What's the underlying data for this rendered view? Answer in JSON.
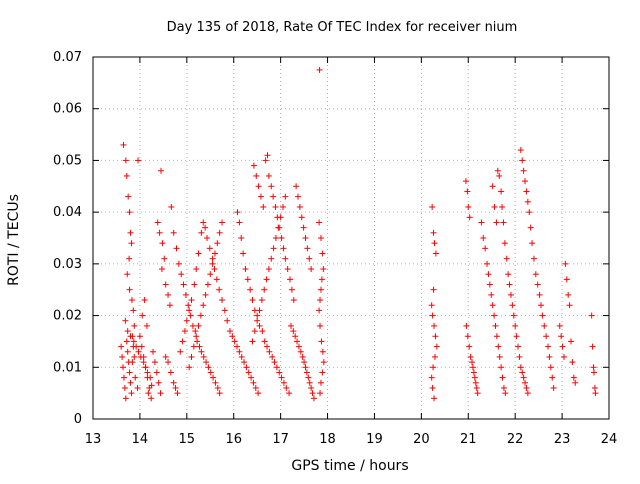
{
  "chart_data": {
    "type": "scatter",
    "title": "Day 135 of 2018, Rate Of TEC Index for receiver nium",
    "xlabel": "GPS time / hours",
    "ylabel": "ROTI / TECUs",
    "xlim": [
      13,
      24
    ],
    "ylim": [
      0,
      0.07
    ],
    "xticks": [
      13,
      14,
      15,
      16,
      17,
      18,
      19,
      20,
      21,
      22,
      23,
      24
    ],
    "yticks": [
      0,
      0.01,
      0.02,
      0.03,
      0.04,
      0.05,
      0.06,
      0.07
    ],
    "ytick_labels": [
      "0",
      "0.01",
      "0.02",
      "0.03",
      "0.04",
      "0.05",
      "0.06",
      "0.07"
    ],
    "grid": true,
    "marker": "+",
    "series_color": "#ff0000",
    "points": [
      [
        13.65,
        0.053
      ],
      [
        13.7,
        0.05
      ],
      [
        13.72,
        0.047
      ],
      [
        13.75,
        0.043
      ],
      [
        13.78,
        0.04
      ],
      [
        13.8,
        0.036
      ],
      [
        13.82,
        0.034
      ],
      [
        13.77,
        0.031
      ],
      [
        13.73,
        0.028
      ],
      [
        13.78,
        0.025
      ],
      [
        13.83,
        0.023
      ],
      [
        13.86,
        0.021
      ],
      [
        13.69,
        0.019
      ],
      [
        13.74,
        0.017
      ],
      [
        13.8,
        0.016
      ],
      [
        13.87,
        0.015
      ],
      [
        13.92,
        0.014
      ],
      [
        13.97,
        0.013
      ],
      [
        14.02,
        0.012
      ],
      [
        14.08,
        0.011
      ],
      [
        14.12,
        0.01
      ],
      [
        14.16,
        0.009
      ],
      [
        14.22,
        0.008
      ],
      [
        14.25,
        0.0065
      ],
      [
        14.18,
        0.005
      ],
      [
        13.95,
        0.006
      ],
      [
        13.9,
        0.008
      ],
      [
        13.84,
        0.011
      ],
      [
        13.88,
        0.018
      ],
      [
        14.05,
        0.02
      ],
      [
        14.1,
        0.023
      ],
      [
        14.15,
        0.018
      ],
      [
        13.96,
        0.05
      ],
      [
        14.45,
        0.048
      ],
      [
        14.38,
        0.038
      ],
      [
        14.42,
        0.036
      ],
      [
        14.48,
        0.034
      ],
      [
        14.52,
        0.031
      ],
      [
        14.47,
        0.029
      ],
      [
        14.55,
        0.026
      ],
      [
        14.6,
        0.024
      ],
      [
        14.64,
        0.022
      ],
      [
        14.67,
        0.041
      ],
      [
        14.72,
        0.036
      ],
      [
        14.78,
        0.033
      ],
      [
        14.83,
        0.03
      ],
      [
        14.88,
        0.028
      ],
      [
        14.93,
        0.026
      ],
      [
        14.98,
        0.024
      ],
      [
        15.03,
        0.022
      ],
      [
        15.08,
        0.02
      ],
      [
        15.13,
        0.018
      ],
      [
        15.18,
        0.017
      ],
      [
        15.22,
        0.015
      ],
      [
        15.27,
        0.014
      ],
      [
        15.31,
        0.013
      ],
      [
        15.36,
        0.012
      ],
      [
        15.41,
        0.011
      ],
      [
        15.46,
        0.01
      ],
      [
        15.51,
        0.009
      ],
      [
        15.56,
        0.008
      ],
      [
        15.61,
        0.007
      ],
      [
        15.66,
        0.006
      ],
      [
        15.7,
        0.005
      ],
      [
        14.55,
        0.012
      ],
      [
        14.6,
        0.011
      ],
      [
        14.66,
        0.009
      ],
      [
        14.72,
        0.007
      ],
      [
        14.76,
        0.006
      ],
      [
        14.8,
        0.005
      ],
      [
        14.86,
        0.013
      ],
      [
        14.91,
        0.015
      ],
      [
        14.96,
        0.017
      ],
      [
        15.0,
        0.019
      ],
      [
        15.05,
        0.021
      ],
      [
        15.1,
        0.023
      ],
      [
        15.16,
        0.026
      ],
      [
        15.2,
        0.029
      ],
      [
        15.25,
        0.032
      ],
      [
        15.31,
        0.036
      ],
      [
        15.35,
        0.038
      ],
      [
        15.39,
        0.037
      ],
      [
        15.43,
        0.035
      ],
      [
        15.49,
        0.033
      ],
      [
        15.55,
        0.031
      ],
      [
        15.59,
        0.029
      ],
      [
        15.64,
        0.027
      ],
      [
        15.69,
        0.025
      ],
      [
        15.75,
        0.023
      ],
      [
        15.81,
        0.021
      ],
      [
        15.86,
        0.019
      ],
      [
        15.92,
        0.017
      ],
      [
        15.97,
        0.016
      ],
      [
        16.02,
        0.015
      ],
      [
        16.07,
        0.014
      ],
      [
        16.12,
        0.013
      ],
      [
        16.17,
        0.012
      ],
      [
        16.22,
        0.011
      ],
      [
        16.27,
        0.01
      ],
      [
        16.32,
        0.009
      ],
      [
        16.37,
        0.008
      ],
      [
        16.42,
        0.007
      ],
      [
        16.47,
        0.006
      ],
      [
        16.52,
        0.005
      ],
      [
        16.08,
        0.04
      ],
      [
        16.12,
        0.038
      ],
      [
        16.16,
        0.035
      ],
      [
        16.2,
        0.032
      ],
      [
        16.25,
        0.029
      ],
      [
        16.3,
        0.027
      ],
      [
        16.35,
        0.025
      ],
      [
        16.4,
        0.023
      ],
      [
        16.45,
        0.021
      ],
      [
        16.5,
        0.02
      ],
      [
        16.55,
        0.018
      ],
      [
        16.61,
        0.017
      ],
      [
        16.66,
        0.015
      ],
      [
        16.71,
        0.014
      ],
      [
        16.76,
        0.013
      ],
      [
        16.82,
        0.012
      ],
      [
        16.87,
        0.011
      ],
      [
        16.92,
        0.01
      ],
      [
        16.97,
        0.009
      ],
      [
        17.02,
        0.008
      ],
      [
        17.07,
        0.007
      ],
      [
        17.12,
        0.006
      ],
      [
        17.18,
        0.005
      ],
      [
        16.43,
        0.049
      ],
      [
        16.48,
        0.047
      ],
      [
        16.53,
        0.045
      ],
      [
        16.58,
        0.043
      ],
      [
        16.63,
        0.041
      ],
      [
        16.68,
        0.05
      ],
      [
        16.72,
        0.051
      ],
      [
        16.75,
        0.047
      ],
      [
        16.8,
        0.045
      ],
      [
        16.84,
        0.043
      ],
      [
        16.89,
        0.041
      ],
      [
        16.93,
        0.039
      ],
      [
        16.97,
        0.037
      ],
      [
        17.02,
        0.035
      ],
      [
        17.06,
        0.033
      ],
      [
        17.1,
        0.031
      ],
      [
        17.15,
        0.029
      ],
      [
        17.2,
        0.027
      ],
      [
        17.24,
        0.025
      ],
      [
        17.28,
        0.023
      ],
      [
        17.33,
        0.045
      ],
      [
        17.37,
        0.043
      ],
      [
        17.41,
        0.041
      ],
      [
        17.45,
        0.039
      ],
      [
        17.49,
        0.037
      ],
      [
        17.53,
        0.035
      ],
      [
        17.57,
        0.033
      ],
      [
        17.61,
        0.031
      ],
      [
        17.65,
        0.029
      ],
      [
        17.22,
        0.018
      ],
      [
        17.27,
        0.017
      ],
      [
        17.31,
        0.016
      ],
      [
        17.35,
        0.015
      ],
      [
        17.39,
        0.014
      ],
      [
        17.43,
        0.013
      ],
      [
        17.47,
        0.012
      ],
      [
        17.5,
        0.011
      ],
      [
        17.53,
        0.01
      ],
      [
        17.56,
        0.009
      ],
      [
        17.59,
        0.008
      ],
      [
        17.62,
        0.007
      ],
      [
        17.65,
        0.006
      ],
      [
        17.68,
        0.005
      ],
      [
        17.71,
        0.004
      ],
      [
        17.83,
        0.0675
      ],
      [
        17.82,
        0.038
      ],
      [
        17.86,
        0.035
      ],
      [
        17.89,
        0.032
      ],
      [
        17.91,
        0.029
      ],
      [
        17.88,
        0.027
      ],
      [
        17.86,
        0.025
      ],
      [
        17.84,
        0.023
      ],
      [
        17.82,
        0.021
      ],
      [
        17.84,
        0.018
      ],
      [
        17.87,
        0.015
      ],
      [
        17.9,
        0.013
      ],
      [
        17.92,
        0.011
      ],
      [
        17.89,
        0.009
      ],
      [
        17.86,
        0.007
      ],
      [
        17.84,
        0.005
      ],
      [
        20.23,
        0.041
      ],
      [
        20.26,
        0.036
      ],
      [
        20.28,
        0.034
      ],
      [
        20.31,
        0.032
      ],
      [
        20.26,
        0.025
      ],
      [
        20.22,
        0.022
      ],
      [
        20.24,
        0.02
      ],
      [
        20.27,
        0.018
      ],
      [
        20.3,
        0.016
      ],
      [
        20.33,
        0.014
      ],
      [
        20.29,
        0.012
      ],
      [
        20.25,
        0.01
      ],
      [
        20.22,
        0.008
      ],
      [
        20.24,
        0.006
      ],
      [
        20.27,
        0.004
      ],
      [
        20.95,
        0.046
      ],
      [
        20.98,
        0.044
      ],
      [
        21.0,
        0.041
      ],
      [
        21.03,
        0.039
      ],
      [
        20.96,
        0.018
      ],
      [
        20.99,
        0.016
      ],
      [
        21.02,
        0.014
      ],
      [
        21.05,
        0.012
      ],
      [
        21.08,
        0.011
      ],
      [
        21.1,
        0.01
      ],
      [
        21.12,
        0.009
      ],
      [
        21.14,
        0.008
      ],
      [
        21.16,
        0.007
      ],
      [
        21.18,
        0.006
      ],
      [
        21.2,
        0.005
      ],
      [
        21.28,
        0.038
      ],
      [
        21.32,
        0.035
      ],
      [
        21.36,
        0.033
      ],
      [
        21.4,
        0.03
      ],
      [
        21.43,
        0.028
      ],
      [
        21.46,
        0.026
      ],
      [
        21.49,
        0.024
      ],
      [
        21.52,
        0.022
      ],
      [
        21.55,
        0.02
      ],
      [
        21.58,
        0.018
      ],
      [
        21.61,
        0.016
      ],
      [
        21.64,
        0.014
      ],
      [
        21.67,
        0.012
      ],
      [
        21.7,
        0.01
      ],
      [
        21.73,
        0.008
      ],
      [
        21.76,
        0.006
      ],
      [
        21.79,
        0.005
      ],
      [
        21.52,
        0.045
      ],
      [
        21.56,
        0.041
      ],
      [
        21.6,
        0.038
      ],
      [
        21.63,
        0.048
      ],
      [
        21.66,
        0.047
      ],
      [
        21.7,
        0.044
      ],
      [
        21.72,
        0.041
      ],
      [
        21.75,
        0.038
      ],
      [
        21.78,
        0.034
      ],
      [
        21.82,
        0.031
      ],
      [
        21.85,
        0.028
      ],
      [
        21.88,
        0.026
      ],
      [
        21.91,
        0.024
      ],
      [
        21.94,
        0.022
      ],
      [
        21.97,
        0.02
      ],
      [
        22.0,
        0.018
      ],
      [
        22.03,
        0.016
      ],
      [
        22.06,
        0.014
      ],
      [
        22.09,
        0.012
      ],
      [
        22.12,
        0.01
      ],
      [
        22.15,
        0.009
      ],
      [
        22.18,
        0.008
      ],
      [
        22.21,
        0.007
      ],
      [
        22.24,
        0.006
      ],
      [
        22.27,
        0.005
      ],
      [
        22.12,
        0.052
      ],
      [
        22.15,
        0.05
      ],
      [
        22.18,
        0.048
      ],
      [
        22.21,
        0.046
      ],
      [
        22.24,
        0.044
      ],
      [
        22.27,
        0.042
      ],
      [
        22.3,
        0.04
      ],
      [
        22.33,
        0.037
      ],
      [
        22.36,
        0.034
      ],
      [
        22.4,
        0.031
      ],
      [
        22.44,
        0.028
      ],
      [
        22.48,
        0.026
      ],
      [
        22.52,
        0.024
      ],
      [
        22.55,
        0.022
      ],
      [
        22.58,
        0.02
      ],
      [
        22.62,
        0.018
      ],
      [
        22.66,
        0.016
      ],
      [
        22.7,
        0.014
      ],
      [
        22.73,
        0.012
      ],
      [
        22.76,
        0.01
      ],
      [
        22.79,
        0.008
      ],
      [
        22.82,
        0.006
      ],
      [
        22.95,
        0.018
      ],
      [
        22.98,
        0.016
      ],
      [
        23.01,
        0.014
      ],
      [
        23.04,
        0.012
      ],
      [
        23.07,
        0.03
      ],
      [
        23.1,
        0.027
      ],
      [
        23.13,
        0.024
      ],
      [
        23.16,
        0.022
      ],
      [
        23.19,
        0.015
      ],
      [
        23.22,
        0.011
      ],
      [
        23.25,
        0.008
      ],
      [
        23.28,
        0.007
      ],
      [
        23.63,
        0.02
      ],
      [
        23.65,
        0.014
      ],
      [
        23.67,
        0.01
      ],
      [
        23.68,
        0.009
      ],
      [
        23.7,
        0.006
      ],
      [
        23.71,
        0.005
      ],
      [
        13.6,
        0.014
      ],
      [
        13.62,
        0.012
      ],
      [
        13.64,
        0.01
      ],
      [
        13.66,
        0.008
      ],
      [
        13.68,
        0.006
      ],
      [
        13.7,
        0.004
      ],
      [
        13.72,
        0.015
      ],
      [
        13.74,
        0.013
      ],
      [
        13.76,
        0.011
      ],
      [
        13.78,
        0.009
      ],
      [
        13.8,
        0.007
      ],
      [
        13.82,
        0.005
      ],
      [
        13.84,
        0.016
      ],
      [
        13.86,
        0.014
      ],
      [
        13.88,
        0.012
      ],
      [
        14.0,
        0.016
      ],
      [
        14.04,
        0.014
      ],
      [
        14.08,
        0.012
      ],
      [
        14.12,
        0.01
      ],
      [
        14.16,
        0.008
      ],
      [
        14.2,
        0.006
      ],
      [
        14.24,
        0.004
      ],
      [
        14.28,
        0.013
      ],
      [
        14.32,
        0.011
      ],
      [
        14.36,
        0.009
      ],
      [
        14.4,
        0.007
      ],
      [
        14.44,
        0.005
      ],
      [
        15.05,
        0.01
      ],
      [
        15.1,
        0.012
      ],
      [
        15.15,
        0.014
      ],
      [
        15.2,
        0.016
      ],
      [
        15.25,
        0.018
      ],
      [
        15.3,
        0.02
      ],
      [
        15.35,
        0.022
      ],
      [
        15.4,
        0.024
      ],
      [
        15.45,
        0.026
      ],
      [
        15.5,
        0.028
      ],
      [
        15.55,
        0.03
      ],
      [
        15.6,
        0.032
      ],
      [
        15.65,
        0.034
      ],
      [
        15.7,
        0.036
      ],
      [
        15.75,
        0.038
      ],
      [
        16.4,
        0.015
      ],
      [
        16.45,
        0.017
      ],
      [
        16.5,
        0.019
      ],
      [
        16.55,
        0.021
      ],
      [
        16.6,
        0.023
      ],
      [
        16.65,
        0.025
      ],
      [
        16.7,
        0.027
      ],
      [
        16.75,
        0.029
      ],
      [
        16.8,
        0.031
      ],
      [
        16.85,
        0.033
      ],
      [
        16.9,
        0.035
      ],
      [
        16.95,
        0.037
      ],
      [
        17.0,
        0.039
      ],
      [
        17.05,
        0.041
      ],
      [
        17.1,
        0.043
      ]
    ]
  }
}
